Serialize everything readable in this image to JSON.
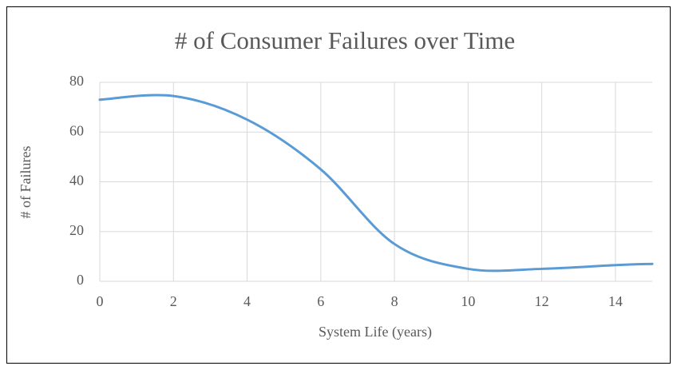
{
  "chart_data": {
    "type": "line",
    "title": "# of Consumer Failures over Time",
    "xlabel": "System Life (years)",
    "ylabel": "# of Failures",
    "x": [
      0,
      2,
      4,
      6,
      8,
      10,
      12,
      14,
      15
    ],
    "series": [
      {
        "name": "# of Failures",
        "color": "#5b9bd5",
        "values": [
          73,
          74.5,
          65,
          45,
          15,
          5,
          5,
          6.5,
          7
        ]
      }
    ],
    "xlim": [
      0,
      15
    ],
    "xticks": [
      0,
      2,
      4,
      6,
      8,
      10,
      12,
      14
    ],
    "ylim": [
      0,
      80
    ],
    "yticks": [
      0,
      20,
      40,
      60,
      80
    ],
    "grid": true,
    "smooth": true
  }
}
